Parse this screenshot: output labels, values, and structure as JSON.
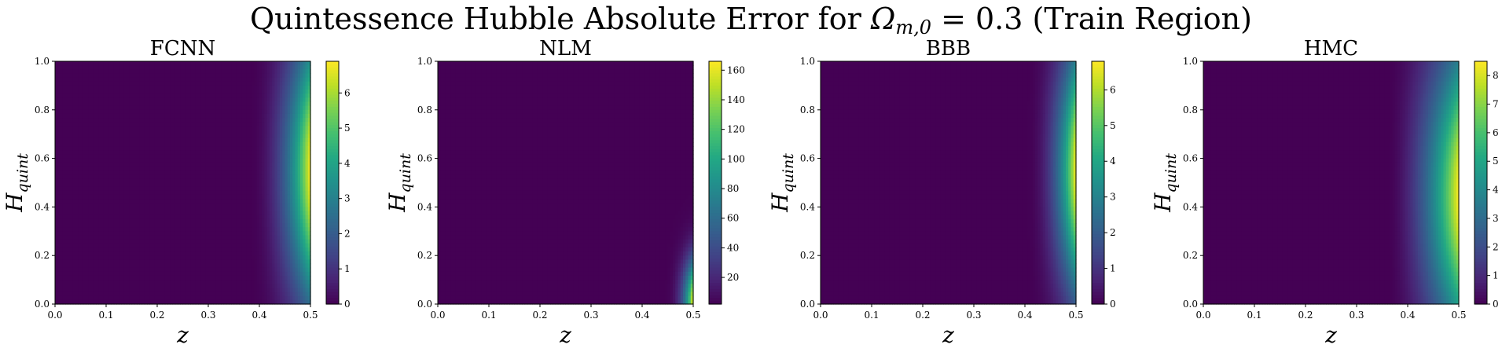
{
  "figure": {
    "title_prefix": "Quintessence Hubble Absolute Error for ",
    "title_symbol": "Ω",
    "title_subscript": "m,0",
    "title_suffix": " = 0.3 (Train Region)"
  },
  "chart_data": [
    {
      "type": "heatmap",
      "title": "FCNN",
      "xlabel": "z",
      "ylabel": "H_quint",
      "xlim": [
        0.0,
        0.5
      ],
      "ylim": [
        0.0,
        1.0
      ],
      "x_ticks": [
        "0.0",
        "0.1",
        "0.2",
        "0.3",
        "0.4",
        "0.5"
      ],
      "y_ticks": [
        "0.0",
        "0.2",
        "0.4",
        "0.6",
        "0.8",
        "1.0"
      ],
      "colorbar": {
        "min": 0,
        "max": 6.9,
        "ticks": [
          0,
          1,
          2,
          3,
          4,
          5,
          6
        ]
      },
      "colormap": "viridis",
      "error_profile": {
        "onset_z": 0.38,
        "peak_H": 0.55,
        "spread_H": 0.55,
        "peak_value": 6.9,
        "sharpness": 2.2
      }
    },
    {
      "type": "heatmap",
      "title": "NLM",
      "xlabel": "z",
      "ylabel": "H_quint",
      "xlim": [
        0.0,
        0.5
      ],
      "ylim": [
        0.0,
        1.0
      ],
      "x_ticks": [
        "0.0",
        "0.1",
        "0.2",
        "0.3",
        "0.4",
        "0.5"
      ],
      "y_ticks": [
        "0.0",
        "0.2",
        "0.4",
        "0.6",
        "0.8",
        "1.0"
      ],
      "colorbar": {
        "min": 2,
        "max": 166,
        "ticks": [
          20,
          40,
          60,
          80,
          100,
          120,
          140,
          160
        ]
      },
      "colormap": "viridis",
      "error_profile": {
        "onset_z": 0.44,
        "peak_H": 0.0,
        "spread_H": 0.18,
        "peak_value": 166,
        "sharpness": 3.0
      }
    },
    {
      "type": "heatmap",
      "title": "BBB",
      "xlabel": "z",
      "ylabel": "H_quint",
      "xlim": [
        0.0,
        0.5
      ],
      "ylim": [
        0.0,
        1.0
      ],
      "x_ticks": [
        "0.0",
        "0.1",
        "0.2",
        "0.3",
        "0.4",
        "0.5"
      ],
      "y_ticks": [
        "0.0",
        "0.2",
        "0.4",
        "0.6",
        "0.8",
        "1.0"
      ],
      "colorbar": {
        "min": 0,
        "max": 6.8,
        "ticks": [
          0,
          1,
          2,
          3,
          4,
          5,
          6
        ]
      },
      "colormap": "viridis",
      "error_profile": {
        "onset_z": 0.4,
        "peak_H": 0.55,
        "spread_H": 0.5,
        "peak_value": 6.8,
        "sharpness": 2.4
      }
    },
    {
      "type": "heatmap",
      "title": "HMC",
      "xlabel": "z",
      "ylabel": "H_quint",
      "xlim": [
        0.0,
        0.5
      ],
      "ylim": [
        0.0,
        1.0
      ],
      "x_ticks": [
        "0.0",
        "0.1",
        "0.2",
        "0.3",
        "0.4",
        "0.5"
      ],
      "y_ticks": [
        "0.0",
        "0.2",
        "0.4",
        "0.6",
        "0.8",
        "1.0"
      ],
      "colorbar": {
        "min": 0,
        "max": 8.5,
        "ticks": [
          0,
          1,
          2,
          3,
          4,
          5,
          6,
          7,
          8
        ]
      },
      "colormap": "viridis",
      "error_profile": {
        "onset_z": 0.36,
        "peak_H": 0.45,
        "spread_H": 0.6,
        "peak_value": 8.5,
        "sharpness": 1.8
      }
    }
  ]
}
